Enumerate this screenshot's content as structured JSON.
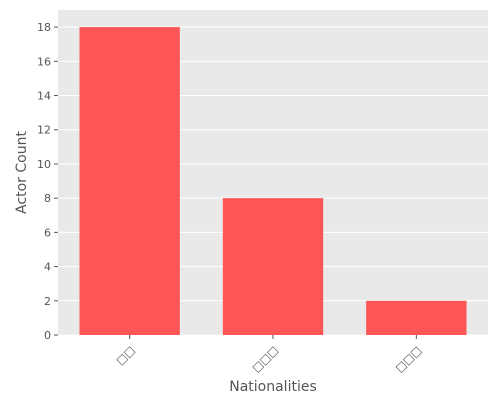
{
  "chart_data": {
    "type": "bar",
    "title": "",
    "xlabel": "Nationalities",
    "ylabel": "Actor Count",
    "categories": [
      "□□",
      "□□□",
      "□□□"
    ],
    "values": [
      18,
      8,
      2
    ],
    "ylim": [
      0,
      19
    ],
    "yticks": [
      0,
      2,
      4,
      6,
      8,
      10,
      12,
      14,
      16,
      18
    ],
    "grid": true,
    "bar_color": "#ff5555",
    "background_color": "#e9e9e9",
    "grid_color": "#ffffff",
    "label_color": "#555555"
  }
}
